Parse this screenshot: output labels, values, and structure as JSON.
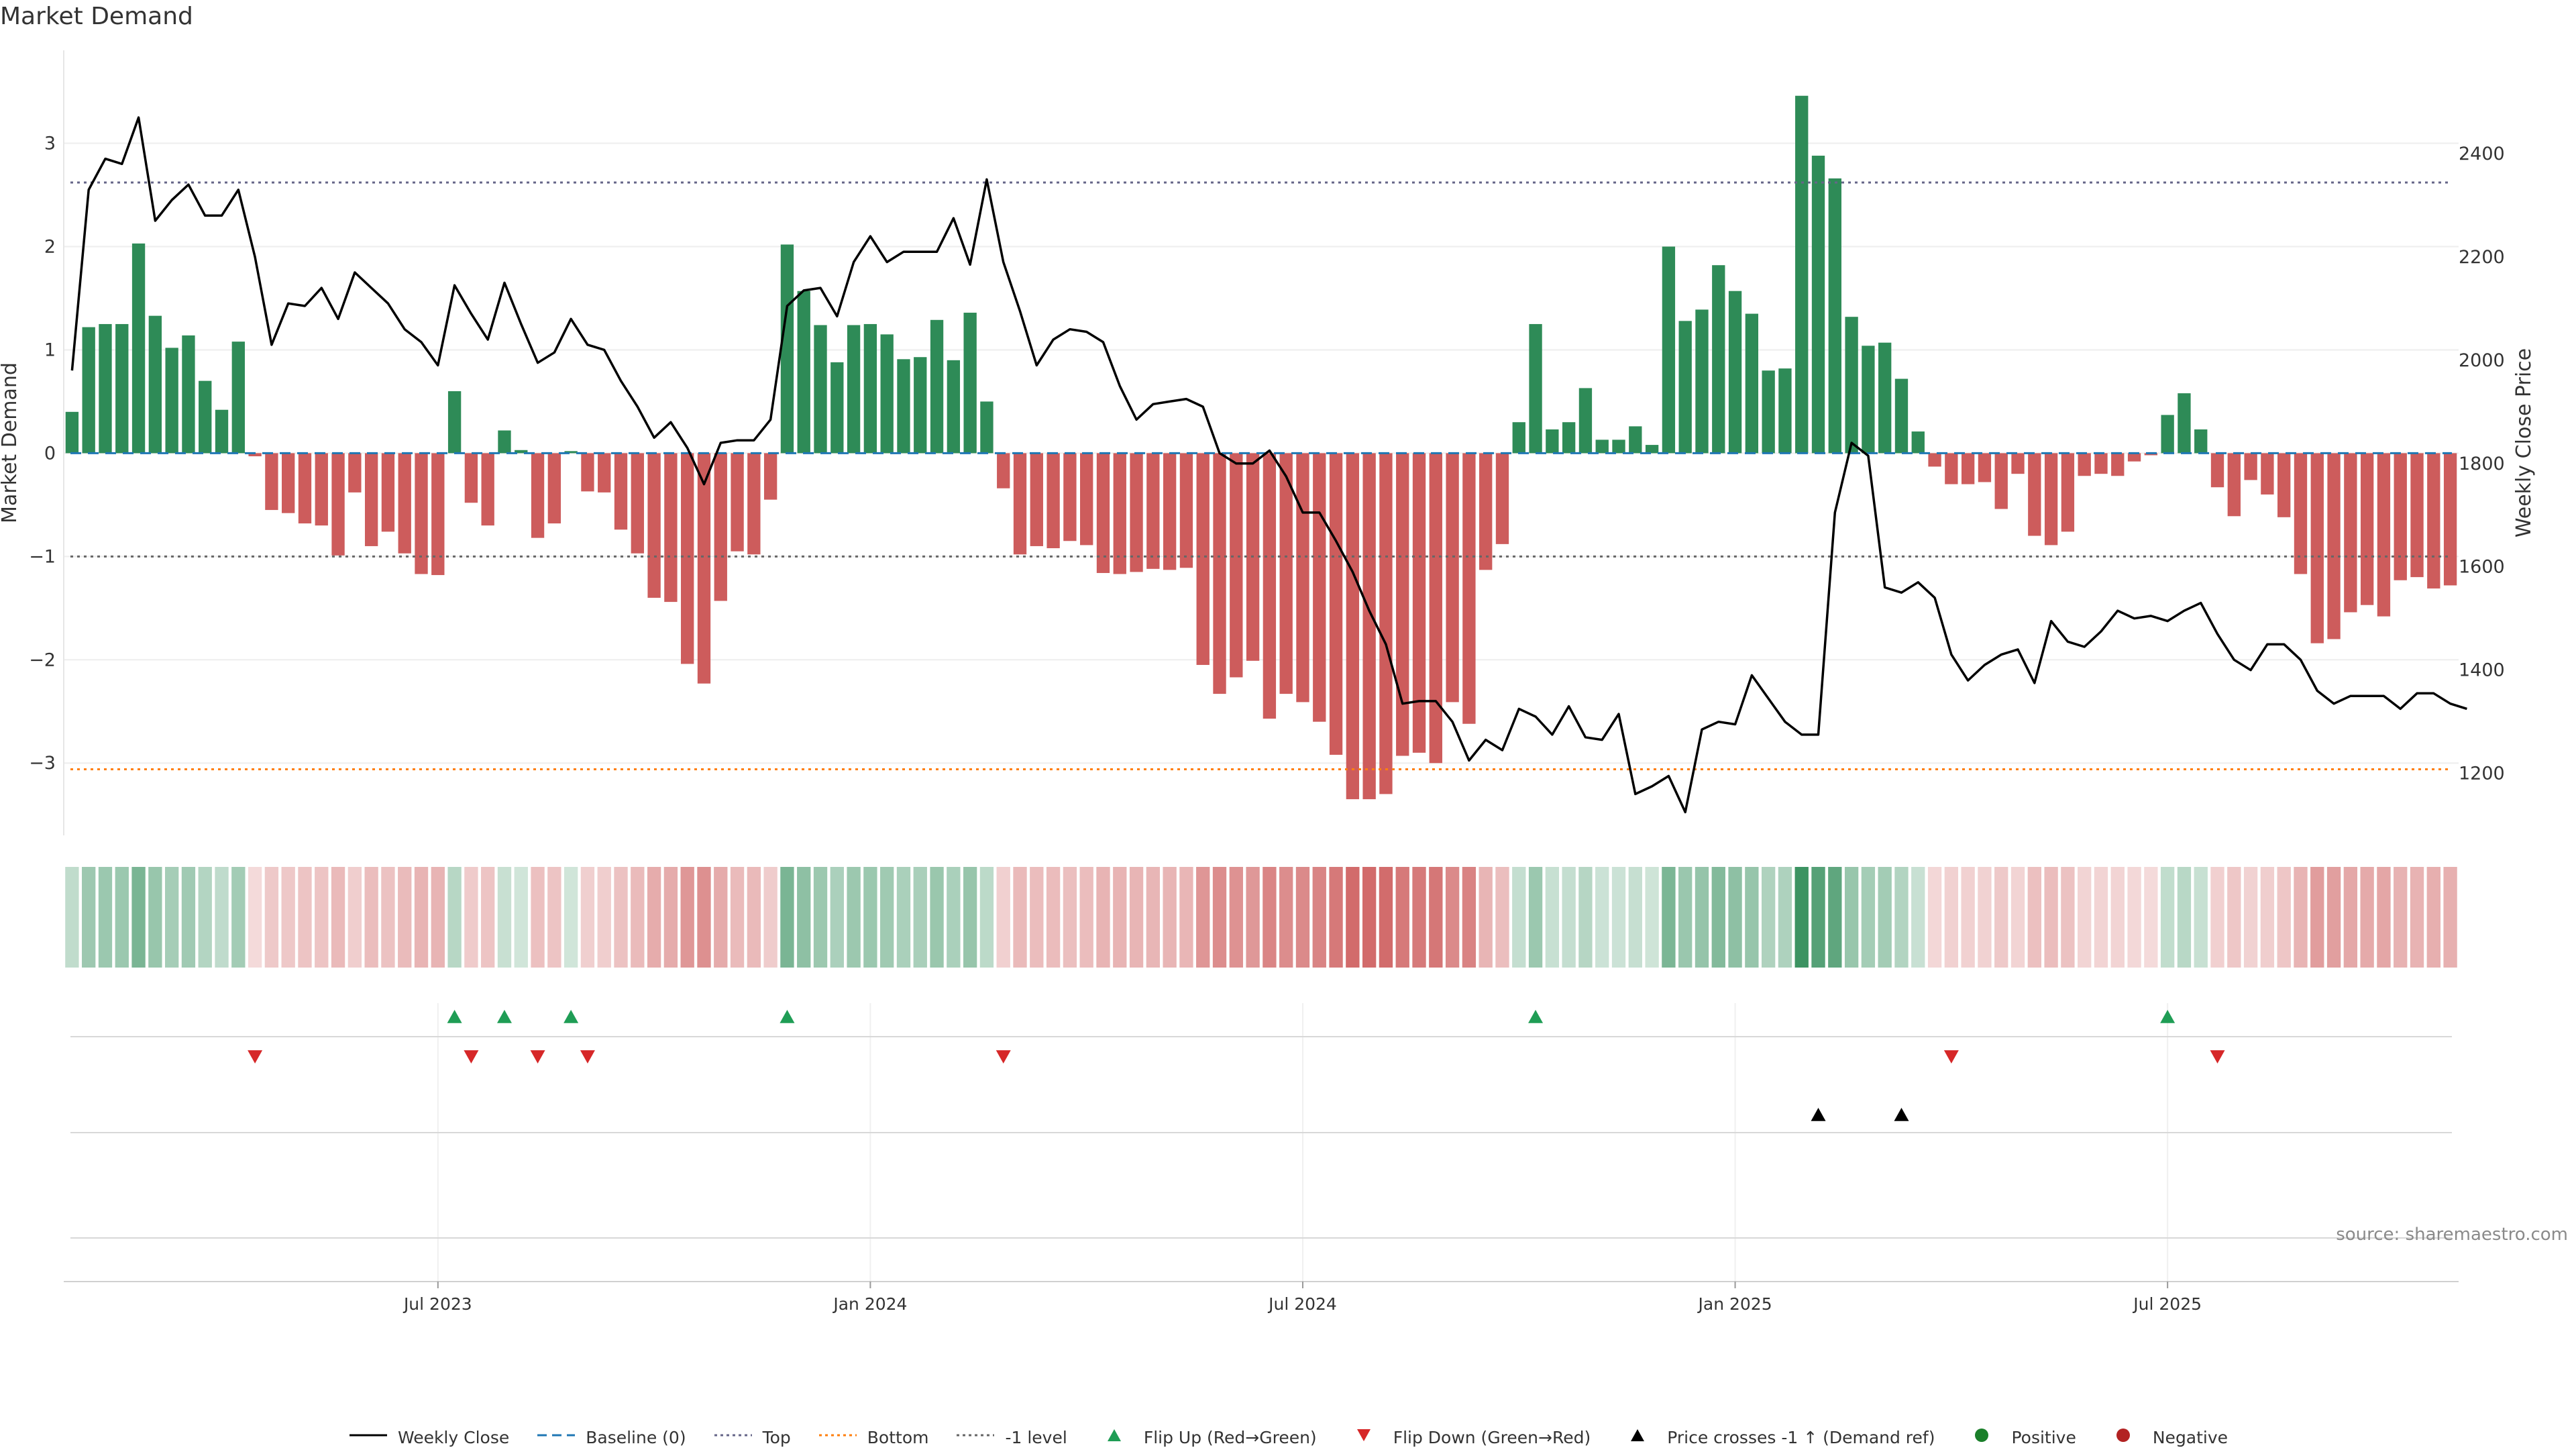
{
  "title": "Market Demand",
  "source": "source: sharemaestro.com",
  "colors": {
    "positive_bar": "#2e8b57",
    "negative_bar": "#cd5c5c",
    "price_line": "#000000",
    "baseline": "#1f77b4",
    "top_line": "#666688",
    "bottom_line": "#ff7f0e",
    "minus1_line": "#666666",
    "flip_up": "#1f9d55",
    "flip_down": "#d62728",
    "price_cross": "#000000",
    "positive_dot": "#1a7f2a",
    "negative_dot": "#b22222"
  },
  "legend": [
    {
      "label": "Weekly Close",
      "icon": "solid-line"
    },
    {
      "label": "Baseline (0)",
      "icon": "dashed-line"
    },
    {
      "label": "Top",
      "icon": "dotted-line"
    },
    {
      "label": "Bottom",
      "icon": "dotted-line-orange"
    },
    {
      "label": "-1 level",
      "icon": "dotted-line-gray"
    },
    {
      "label": "Flip Up (Red→Green)",
      "icon": "triangle-up-green"
    },
    {
      "label": "Flip Down (Green→Red)",
      "icon": "triangle-down-red"
    },
    {
      "label": "Price crosses -1 ↑ (Demand ref)",
      "icon": "triangle-up-black"
    },
    {
      "label": "Positive",
      "icon": "circle-green"
    },
    {
      "label": "Negative",
      "icon": "circle-red"
    }
  ],
  "chart_data": {
    "type": "bar",
    "title": "Market Demand",
    "ylabel": "Market Demand",
    "y2label": "Weekly Close Price",
    "ylim": [
      -3.7,
      3.9
    ],
    "y2lim": [
      1080,
      2600
    ],
    "yticks": [
      3,
      2,
      1,
      0,
      -1,
      -2,
      -3
    ],
    "ytick_labels": [
      "3",
      "2",
      "1",
      "0",
      "−1",
      "−2",
      "−3"
    ],
    "y2ticks": [
      2400,
      2200,
      2000,
      1800,
      1600,
      1400,
      1200
    ],
    "x_ticks": [
      22,
      48,
      74,
      100,
      126
    ],
    "x_tick_labels": [
      "Jul 2023",
      "Jan 2024",
      "Jul 2024",
      "Jan 2025",
      "Jul 2025"
    ],
    "reference_lines": {
      "top": 2.62,
      "bottom": -3.06,
      "minus_one": -1.0,
      "baseline": 0
    },
    "series": [
      {
        "name": "Market Demand",
        "values": [
          0.4,
          1.22,
          1.25,
          1.25,
          2.03,
          1.33,
          1.02,
          1.14,
          0.7,
          0.42,
          1.08,
          -0.03,
          -0.55,
          -0.58,
          -0.68,
          -0.7,
          -0.99,
          -0.38,
          -0.9,
          -0.76,
          -0.97,
          -1.17,
          -1.18,
          0.6,
          -0.48,
          -0.7,
          0.22,
          0.03,
          -0.82,
          -0.68,
          0.02,
          -0.37,
          -0.38,
          -0.74,
          -0.97,
          -1.4,
          -1.44,
          -2.04,
          -2.23,
          -1.43,
          -0.95,
          -0.98,
          -0.45,
          2.02,
          1.57,
          1.24,
          0.88,
          1.24,
          1.25,
          1.15,
          0.91,
          0.93,
          1.29,
          0.9,
          1.36,
          0.5,
          -0.34,
          -0.98,
          -0.9,
          -0.92,
          -0.85,
          -0.89,
          -1.16,
          -1.17,
          -1.15,
          -1.12,
          -1.13,
          -1.11,
          -2.05,
          -2.33,
          -2.17,
          -2.01,
          -2.57,
          -2.33,
          -2.41,
          -2.6,
          -2.92,
          -3.35,
          -3.35,
          -3.3,
          -2.93,
          -2.9,
          -3.0,
          -2.41,
          -2.62,
          -1.13,
          -0.88,
          0.3,
          1.25,
          0.23,
          0.3,
          0.63,
          0.13,
          0.13,
          0.26,
          0.08,
          2.0,
          1.28,
          1.39,
          1.82,
          1.57,
          1.35,
          0.8,
          0.82,
          3.46,
          2.88,
          2.66,
          1.32,
          1.04,
          1.07,
          0.72,
          0.21,
          -0.13,
          -0.3,
          -0.3,
          -0.28,
          -0.54,
          -0.2,
          -0.8,
          -0.89,
          -0.76,
          -0.22,
          -0.2,
          -0.22,
          -0.08,
          -0.02,
          0.37,
          0.58,
          0.23,
          -0.33,
          -0.61,
          -0.26,
          -0.4,
          -0.62,
          -1.17,
          -1.84,
          -1.8,
          -1.54,
          -1.47,
          -1.58,
          -1.23,
          -1.2,
          -1.31,
          -1.28
        ]
      },
      {
        "name": "Weekly Close",
        "values": [
          1980,
          2330,
          2390,
          2380,
          2470,
          2270,
          2310,
          2340,
          2280,
          2280,
          2330,
          2200,
          2030,
          2110,
          2105,
          2140,
          2080,
          2170,
          2140,
          2110,
          2060,
          2035,
          1990,
          2145,
          2090,
          2040,
          2150,
          2070,
          1995,
          2015,
          2080,
          2030,
          2020,
          1960,
          1910,
          1850,
          1880,
          1830,
          1760,
          1840,
          1845,
          1845,
          1885,
          2105,
          2135,
          2140,
          2085,
          2190,
          2240,
          2190,
          2210,
          2210,
          2210,
          2275,
          2185,
          2350,
          2190,
          2095,
          1990,
          2040,
          2060,
          2055,
          2035,
          1950,
          1885,
          1915,
          1920,
          1925,
          1910,
          1820,
          1800,
          1800,
          1825,
          1775,
          1705,
          1705,
          1650,
          1590,
          1515,
          1450,
          1335,
          1340,
          1340,
          1300,
          1225,
          1265,
          1245,
          1325,
          1310,
          1275,
          1330,
          1270,
          1265,
          1315,
          1160,
          1175,
          1195,
          1125,
          1285,
          1300,
          1295,
          1390,
          1345,
          1300,
          1275,
          1275,
          1705,
          1840,
          1815,
          1560,
          1550,
          1570,
          1540,
          1430,
          1380,
          1410,
          1430,
          1440,
          1375,
          1495,
          1455,
          1445,
          1475,
          1515,
          1500,
          1505,
          1495,
          1515,
          1530,
          1470,
          1420,
          1400,
          1450,
          1450,
          1420,
          1360,
          1335,
          1350,
          1350,
          1350,
          1325,
          1355,
          1355,
          1335,
          1325
        ]
      }
    ],
    "heat_strip": "colored cells per week, green intensity for positive demand, red intensity for negative demand",
    "markers": {
      "flip_up": [
        23,
        26,
        30,
        43,
        88,
        126
      ],
      "flip_down": [
        11,
        24,
        28,
        31,
        56,
        113,
        129
      ],
      "price_cross_up": [
        105,
        110
      ]
    }
  }
}
